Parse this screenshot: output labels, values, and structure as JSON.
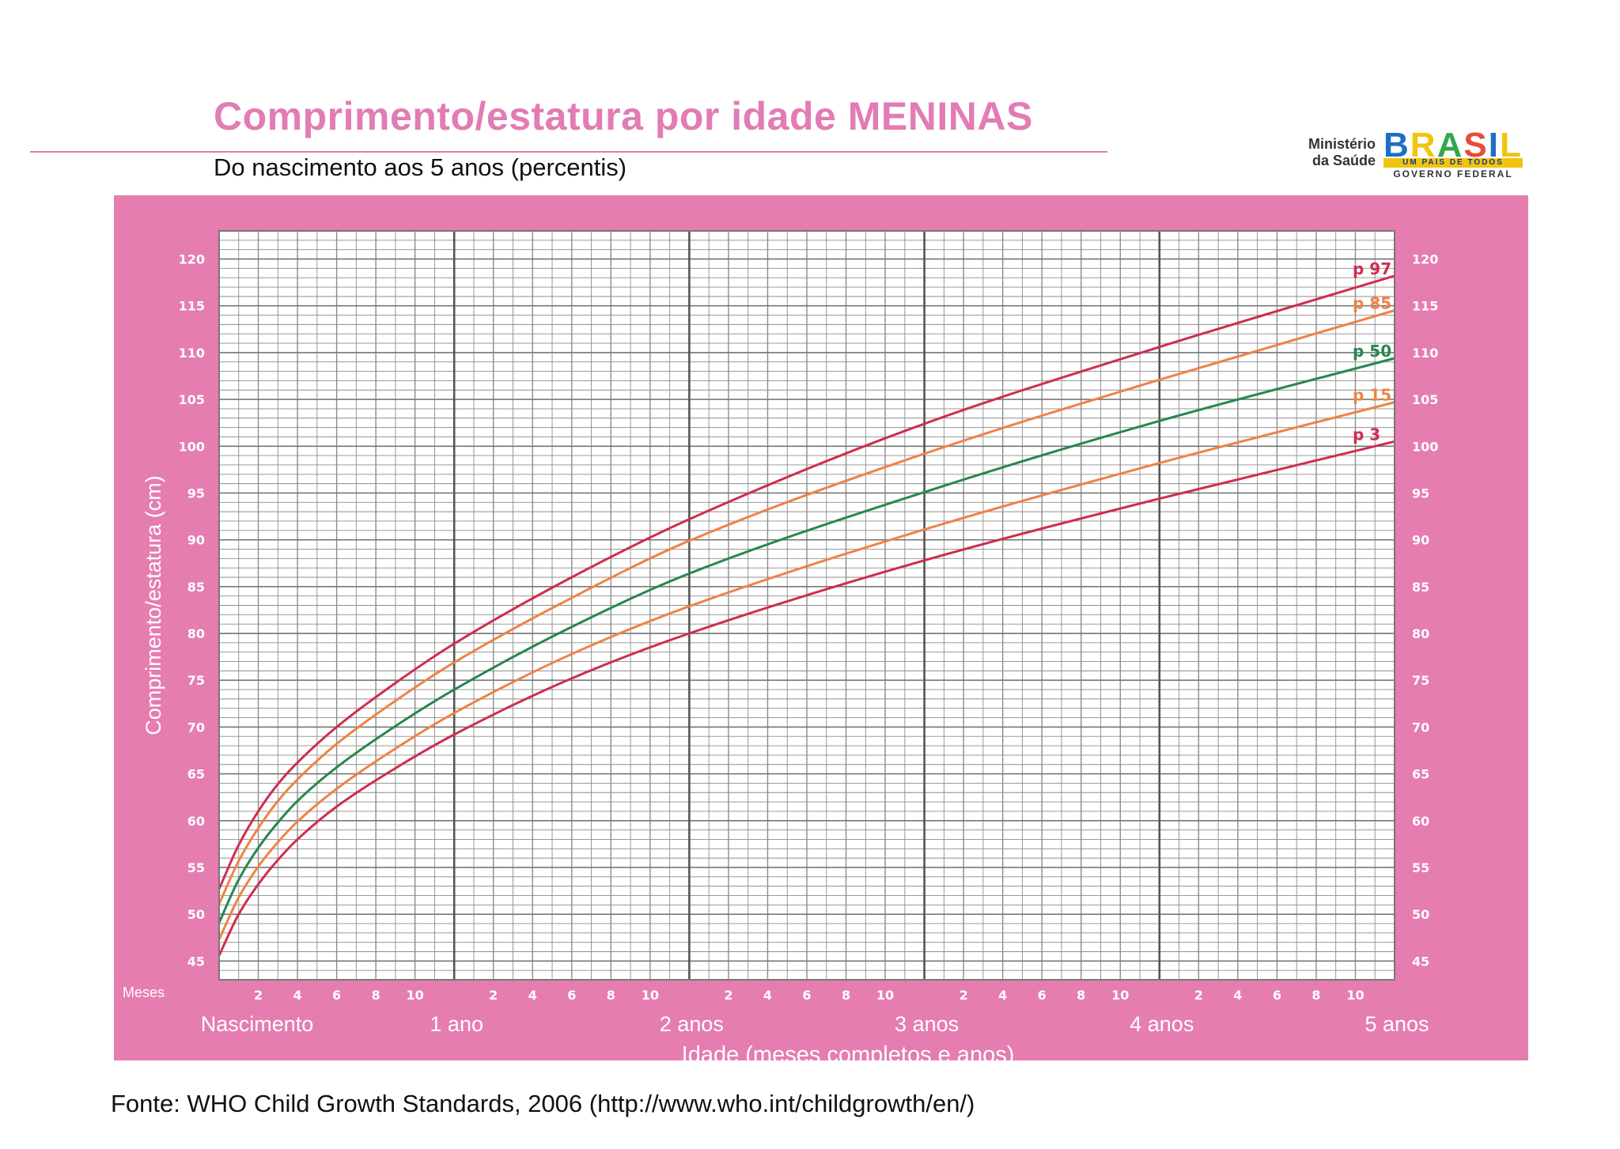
{
  "header": {
    "title": "Comprimento/estatura por idade MENINAS",
    "subtitle": "Do nascimento aos 5 anos (percentis)"
  },
  "logo": {
    "ministry_line1": "Ministério",
    "ministry_line2": "da Saúde",
    "brand": "BRASIL",
    "tagline": "UM PAÍS DE TODOS",
    "government": "GOVERNO FEDERAL",
    "colors": [
      "#1b6fc4",
      "#f1c40f",
      "#2fa84f",
      "#e74c3c"
    ]
  },
  "footer": {
    "source": "Fonte: WHO Child Growth Standards, 2006 (http://www.who.int/childgrowth/en/)"
  },
  "chart_data": {
    "type": "line",
    "title": "Comprimento/estatura por idade MENINAS",
    "subtitle": "Do nascimento aos 5 anos (percentis)",
    "xlabel": "Idade (meses completos e anos)",
    "ylabel": "Comprimento/estatura (cm)",
    "xlim": [
      0,
      60
    ],
    "ylim": [
      43,
      123
    ],
    "grid": true,
    "legend": "inline-right",
    "months_label": "Meses",
    "x_minor_tick_labels": [
      "2",
      "4",
      "6",
      "8",
      "10"
    ],
    "x_major_labels": [
      {
        "month": 0,
        "label": "Nascimento"
      },
      {
        "month": 12,
        "label": "1 ano"
      },
      {
        "month": 24,
        "label": "2 anos"
      },
      {
        "month": 36,
        "label": "3 anos"
      },
      {
        "month": 48,
        "label": "4 anos"
      },
      {
        "month": 60,
        "label": "5 anos"
      }
    ],
    "y_ticks": [
      45,
      50,
      55,
      60,
      65,
      70,
      75,
      80,
      85,
      90,
      95,
      100,
      105,
      110,
      115,
      120
    ],
    "colors": {
      "background": "#e57db0",
      "grid_minor": "#8c8c8c",
      "grid_major": "#555555",
      "p3": "#cf2d4f",
      "p15": "#ee8344",
      "p50": "#27874f",
      "p85": "#ee8344",
      "p97": "#cf2d4f"
    },
    "x": [
      0,
      1,
      2,
      3,
      4,
      6,
      9,
      12,
      18,
      24,
      36,
      48,
      60
    ],
    "series": [
      {
        "name": "p 97",
        "key": "p97",
        "values": [
          52.7,
          57.4,
          61.0,
          63.9,
          66.2,
          70.0,
          74.7,
          78.9,
          86.0,
          92.2,
          102.4,
          110.6,
          118.2
        ]
      },
      {
        "name": "p 85",
        "key": "p85",
        "values": [
          51.1,
          55.7,
          59.2,
          62.1,
          64.4,
          68.2,
          72.8,
          76.9,
          83.8,
          89.9,
          99.2,
          107.1,
          114.5
        ]
      },
      {
        "name": "p 50",
        "key": "p50",
        "values": [
          49.1,
          53.7,
          57.1,
          59.8,
          62.1,
          65.7,
          70.1,
          74.0,
          80.7,
          86.4,
          95.1,
          102.7,
          109.4
        ]
      },
      {
        "name": "p 15",
        "key": "p15",
        "values": [
          47.3,
          51.8,
          55.1,
          57.7,
          59.9,
          63.4,
          67.7,
          71.5,
          77.8,
          82.9,
          91.1,
          98.2,
          104.7
        ]
      },
      {
        "name": "p 3",
        "key": "p3",
        "values": [
          45.6,
          50.0,
          53.2,
          55.8,
          58.0,
          61.5,
          65.6,
          69.2,
          75.2,
          80.0,
          87.8,
          94.4,
          100.5
        ]
      }
    ]
  }
}
